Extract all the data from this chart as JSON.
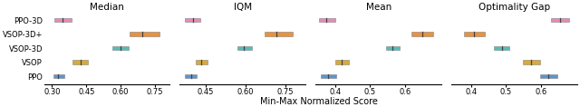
{
  "methods": [
    "PPO-3D",
    "VSOP-3D+",
    "VSOP-3D",
    "VSOP",
    "PPO"
  ],
  "colors": [
    "#e878b0",
    "#e8821e",
    "#3ab5b0",
    "#d4a017",
    "#4488cc"
  ],
  "xlabel": "Min-Max Normalized Score",
  "panels": [
    {
      "name": "Median",
      "xlim": [
        0.265,
        0.815
      ],
      "xticks": [
        0.3,
        0.45,
        0.6,
        0.75
      ],
      "xtick_labels": [
        "0.30",
        "0.45",
        "0.60",
        "0.75"
      ],
      "boxes": [
        {
          "method": "PPO-3D",
          "q1": 0.31,
          "median": 0.345,
          "q3": 0.385,
          "yrow": 4
        },
        {
          "method": "VSOP-3D+",
          "q1": 0.64,
          "median": 0.695,
          "q3": 0.77,
          "yrow": 3
        },
        {
          "method": "VSOP-3D",
          "q1": 0.565,
          "median": 0.6,
          "q3": 0.635,
          "yrow": 2
        },
        {
          "method": "VSOP",
          "q1": 0.39,
          "median": 0.425,
          "q3": 0.455,
          "yrow": 1
        },
        {
          "method": "PPO",
          "q1": 0.305,
          "median": 0.325,
          "q3": 0.355,
          "yrow": 0
        }
      ]
    },
    {
      "name": "IQM",
      "xlim": [
        0.355,
        0.825
      ],
      "xticks": [
        0.45,
        0.6,
        0.75
      ],
      "xtick_labels": [
        "0.45",
        "0.60",
        "0.75"
      ],
      "boxes": [
        {
          "method": "PPO-3D",
          "q1": 0.375,
          "median": 0.405,
          "q3": 0.43,
          "yrow": 4
        },
        {
          "method": "VSOP-3D+",
          "q1": 0.67,
          "median": 0.715,
          "q3": 0.775,
          "yrow": 3
        },
        {
          "method": "VSOP-3D",
          "q1": 0.57,
          "median": 0.595,
          "q3": 0.625,
          "yrow": 2
        },
        {
          "method": "VSOP",
          "q1": 0.415,
          "median": 0.435,
          "q3": 0.458,
          "yrow": 1
        },
        {
          "method": "PPO",
          "q1": 0.375,
          "median": 0.397,
          "q3": 0.418,
          "yrow": 0
        }
      ]
    },
    {
      "name": "Mean",
      "xlim": [
        0.345,
        0.705
      ],
      "xticks": [
        0.4,
        0.5,
        0.6
      ],
      "xtick_labels": [
        "0.4",
        "0.5",
        "0.6"
      ],
      "boxes": [
        {
          "method": "PPO-3D",
          "q1": 0.355,
          "median": 0.375,
          "q3": 0.4,
          "yrow": 4
        },
        {
          "method": "VSOP-3D+",
          "q1": 0.62,
          "median": 0.65,
          "q3": 0.68,
          "yrow": 3
        },
        {
          "method": "VSOP-3D",
          "q1": 0.545,
          "median": 0.565,
          "q3": 0.585,
          "yrow": 2
        },
        {
          "method": "VSOP",
          "q1": 0.4,
          "median": 0.418,
          "q3": 0.44,
          "yrow": 1
        },
        {
          "method": "PPO",
          "q1": 0.36,
          "median": 0.38,
          "q3": 0.403,
          "yrow": 0
        }
      ]
    },
    {
      "name": "Optimality Gap",
      "xlim": [
        0.345,
        0.705
      ],
      "xticks": [
        0.4,
        0.5,
        0.6
      ],
      "xtick_labels": [
        "0.4",
        "0.5",
        "0.6"
      ],
      "boxes": [
        {
          "method": "PPO-3D",
          "q1": 0.63,
          "median": 0.655,
          "q3": 0.68,
          "yrow": 4
        },
        {
          "method": "VSOP-3D+",
          "q1": 0.38,
          "median": 0.408,
          "q3": 0.44,
          "yrow": 3
        },
        {
          "method": "VSOP-3D",
          "q1": 0.465,
          "median": 0.488,
          "q3": 0.51,
          "yrow": 2
        },
        {
          "method": "VSOP",
          "q1": 0.548,
          "median": 0.572,
          "q3": 0.598,
          "yrow": 1
        },
        {
          "method": "PPO",
          "q1": 0.598,
          "median": 0.622,
          "q3": 0.648,
          "yrow": 0
        }
      ]
    }
  ]
}
